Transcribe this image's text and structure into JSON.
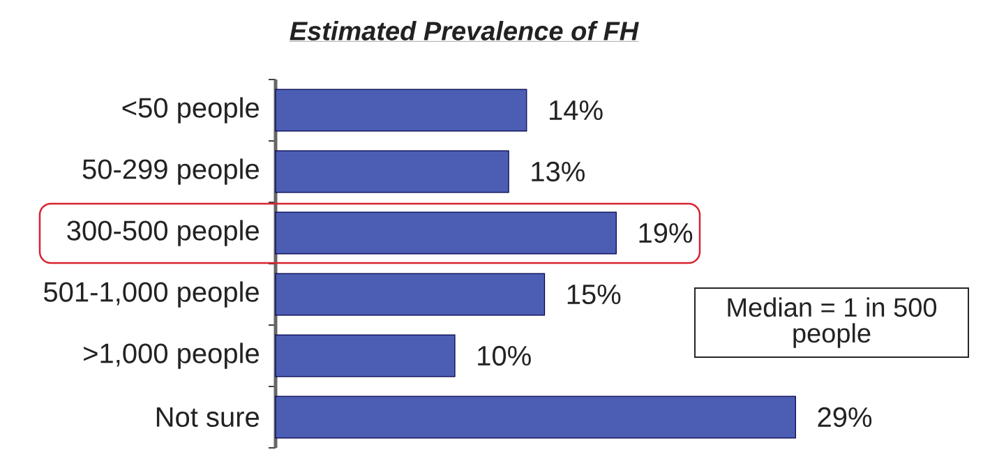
{
  "chart_data": {
    "type": "bar",
    "orientation": "horizontal",
    "title": "Estimated Prevalence of FH",
    "categories": [
      "<50 people",
      "50-299 people",
      "300-500 people",
      "501-1,000 people",
      ">1,000 people",
      "Not sure"
    ],
    "values": [
      14,
      13,
      19,
      15,
      10,
      29
    ],
    "value_labels": [
      "14%",
      "13%",
      "19%",
      "15%",
      "10%",
      "29%"
    ],
    "color": "#4c5eb4",
    "annotations": [
      "Median = 1 in 500 people"
    ]
  }
}
